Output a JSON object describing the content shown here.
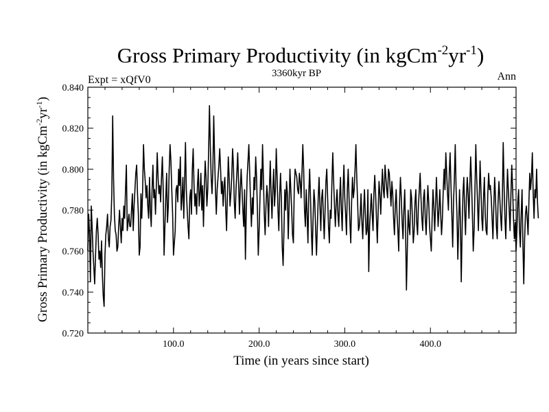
{
  "chart_data": {
    "type": "line",
    "title": "Gross Primary Productivity (in kgCm",
    "title_sup1": "-2",
    "title_mid": "yr",
    "title_sup2": "-1",
    "title_end": ")",
    "subtitle": "3360kyr BP",
    "left_label": "Expt = xQfV0",
    "right_label": "Ann",
    "xlabel": "Time (in years since start)",
    "ylabel": "Gross Primary Productivity (in kgCm",
    "ylabel_sup1": "-2",
    "ylabel_mid": "yr",
    "ylabel_sup2": "-1",
    "ylabel_end": ")",
    "xlim": [
      0,
      500
    ],
    "ylim": [
      0.72,
      0.84
    ],
    "xticks": [
      100,
      200,
      300,
      400
    ],
    "xtick_labels": [
      "100.0",
      "200.0",
      "300.0",
      "400.0"
    ],
    "yticks": [
      0.72,
      0.74,
      0.76,
      0.78,
      0.8,
      0.82,
      0.84
    ],
    "ytick_labels": [
      "0.720",
      "0.740",
      "0.760",
      "0.780",
      "0.800",
      "0.820",
      "0.840"
    ],
    "series": [
      {
        "name": "Ann",
        "color": "#000000",
        "x_start": 0,
        "x_step": 1,
        "values": [
          0.76,
          0.778,
          0.768,
          0.745,
          0.782,
          0.772,
          0.76,
          0.752,
          0.744,
          0.758,
          0.77,
          0.776,
          0.768,
          0.756,
          0.76,
          0.752,
          0.765,
          0.748,
          0.738,
          0.733,
          0.758,
          0.768,
          0.772,
          0.778,
          0.766,
          0.762,
          0.772,
          0.775,
          0.788,
          0.826,
          0.796,
          0.778,
          0.77,
          0.768,
          0.76,
          0.762,
          0.772,
          0.78,
          0.772,
          0.764,
          0.776,
          0.77,
          0.782,
          0.776,
          0.79,
          0.802,
          0.77,
          0.774,
          0.778,
          0.772,
          0.772,
          0.78,
          0.788,
          0.77,
          0.782,
          0.79,
          0.798,
          0.802,
          0.788,
          0.778,
          0.758,
          0.762,
          0.788,
          0.776,
          0.79,
          0.812,
          0.8,
          0.794,
          0.786,
          0.792,
          0.782,
          0.776,
          0.796,
          0.78,
          0.772,
          0.79,
          0.802,
          0.786,
          0.79,
          0.778,
          0.792,
          0.808,
          0.796,
          0.788,
          0.792,
          0.784,
          0.796,
          0.806,
          0.79,
          0.758,
          0.772,
          0.786,
          0.798,
          0.774,
          0.782,
          0.8,
          0.812,
          0.804,
          0.79,
          0.778,
          0.758,
          0.764,
          0.77,
          0.79,
          0.792,
          0.784,
          0.8,
          0.792,
          0.806,
          0.78,
          0.786,
          0.796,
          0.776,
          0.794,
          0.813,
          0.79,
          0.78,
          0.772,
          0.766,
          0.786,
          0.79,
          0.778,
          0.8,
          0.81,
          0.792,
          0.782,
          0.788,
          0.778,
          0.792,
          0.8,
          0.782,
          0.788,
          0.798,
          0.78,
          0.792,
          0.772,
          0.79,
          0.804,
          0.796,
          0.782,
          0.79,
          0.808,
          0.831,
          0.812,
          0.796,
          0.788,
          0.8,
          0.826,
          0.806,
          0.79,
          0.778,
          0.79,
          0.796,
          0.802,
          0.81,
          0.8,
          0.788,
          0.794,
          0.782,
          0.792,
          0.796,
          0.78,
          0.77,
          0.788,
          0.806,
          0.796,
          0.782,
          0.788,
          0.796,
          0.81,
          0.802,
          0.784,
          0.776,
          0.79,
          0.798,
          0.808,
          0.794,
          0.778,
          0.79,
          0.8,
          0.79,
          0.78,
          0.772,
          0.79,
          0.756,
          0.78,
          0.796,
          0.804,
          0.812,
          0.798,
          0.784,
          0.772,
          0.786,
          0.778,
          0.796,
          0.79,
          0.806,
          0.796,
          0.78,
          0.758,
          0.77,
          0.786,
          0.8,
          0.79,
          0.812,
          0.796,
          0.778,
          0.768,
          0.782,
          0.792,
          0.786,
          0.772,
          0.79,
          0.804,
          0.788,
          0.776,
          0.79,
          0.8,
          0.782,
          0.79,
          0.81,
          0.796,
          0.78,
          0.77,
          0.788,
          0.798,
          0.784,
          0.762,
          0.753,
          0.77,
          0.79,
          0.78,
          0.794,
          0.788,
          0.766,
          0.782,
          0.8,
          0.79,
          0.78,
          0.768,
          0.764,
          0.79,
          0.8,
          0.798,
          0.796,
          0.79,
          0.788,
          0.798,
          0.794,
          0.786,
          0.798,
          0.812,
          0.8,
          0.78,
          0.772,
          0.79,
          0.778,
          0.764,
          0.788,
          0.8,
          0.786,
          0.77,
          0.758,
          0.776,
          0.79,
          0.784,
          0.77,
          0.758,
          0.772,
          0.786,
          0.796,
          0.782,
          0.77,
          0.786,
          0.79,
          0.778,
          0.766,
          0.78,
          0.794,
          0.8,
          0.786,
          0.772,
          0.764,
          0.78,
          0.776,
          0.794,
          0.808,
          0.794,
          0.782,
          0.772,
          0.784,
          0.79,
          0.778,
          0.772,
          0.786,
          0.796,
          0.78,
          0.77,
          0.79,
          0.802,
          0.786,
          0.778,
          0.768,
          0.79,
          0.8,
          0.786,
          0.774,
          0.764,
          0.784,
          0.796,
          0.786,
          0.79,
          0.8,
          0.812,
          0.796,
          0.784,
          0.77,
          0.772,
          0.778,
          0.788,
          0.774,
          0.766,
          0.78,
          0.79,
          0.778,
          0.768,
          0.77,
          0.79,
          0.75,
          0.772,
          0.78,
          0.788,
          0.778,
          0.77,
          0.788,
          0.797,
          0.788,
          0.776,
          0.764,
          0.78,
          0.794,
          0.788,
          0.778,
          0.79,
          0.8,
          0.79,
          0.786,
          0.802,
          0.796,
          0.79,
          0.786,
          0.8,
          0.798,
          0.79,
          0.782,
          0.794,
          0.788,
          0.776,
          0.768,
          0.782,
          0.79,
          0.778,
          0.77,
          0.76,
          0.784,
          0.796,
          0.786,
          0.774,
          0.766,
          0.78,
          0.79,
          0.77,
          0.741,
          0.76,
          0.78,
          0.772,
          0.768,
          0.79,
          0.786,
          0.776,
          0.764,
          0.77,
          0.784,
          0.79,
          0.774,
          0.768,
          0.782,
          0.79,
          0.798,
          0.786,
          0.776,
          0.77,
          0.786,
          0.79,
          0.776,
          0.768,
          0.78,
          0.792,
          0.784,
          0.772,
          0.766,
          0.76,
          0.776,
          0.79,
          0.782,
          0.77,
          0.782,
          0.796,
          0.784,
          0.772,
          0.78,
          0.79,
          0.778,
          0.768,
          0.776,
          0.79,
          0.8,
          0.79,
          0.808,
          0.798,
          0.788,
          0.78,
          0.798,
          0.808,
          0.792,
          0.778,
          0.762,
          0.784,
          0.796,
          0.812,
          0.79,
          0.778,
          0.756,
          0.772,
          0.79,
          0.775,
          0.745,
          0.77,
          0.788,
          0.796,
          0.78,
          0.768,
          0.786,
          0.796,
          0.788,
          0.776,
          0.792,
          0.806,
          0.794,
          0.778,
          0.76,
          0.77,
          0.79,
          0.812,
          0.796,
          0.784,
          0.77,
          0.786,
          0.804,
          0.79,
          0.776,
          0.77,
          0.786,
          0.796,
          0.778,
          0.77,
          0.768,
          0.788,
          0.798,
          0.79,
          0.792,
          0.786,
          0.776,
          0.766,
          0.782,
          0.796,
          0.786,
          0.772,
          0.766,
          0.784,
          0.794,
          0.786,
          0.777,
          0.77,
          0.786,
          0.813,
          0.792,
          0.776,
          0.766,
          0.784,
          0.8,
          0.79,
          0.78,
          0.77,
          0.788,
          0.802,
          0.79,
          0.776,
          0.766,
          0.774,
          0.76,
          0.77,
          0.784,
          0.79,
          0.77,
          0.762,
          0.778,
          0.79,
          0.764,
          0.744,
          0.766,
          0.778,
          0.782,
          0.776,
          0.768,
          0.784,
          0.798,
          0.79,
          0.796,
          0.808,
          0.788,
          0.776,
          0.79,
          0.786,
          0.8,
          0.784,
          0.776
        ]
      }
    ]
  }
}
